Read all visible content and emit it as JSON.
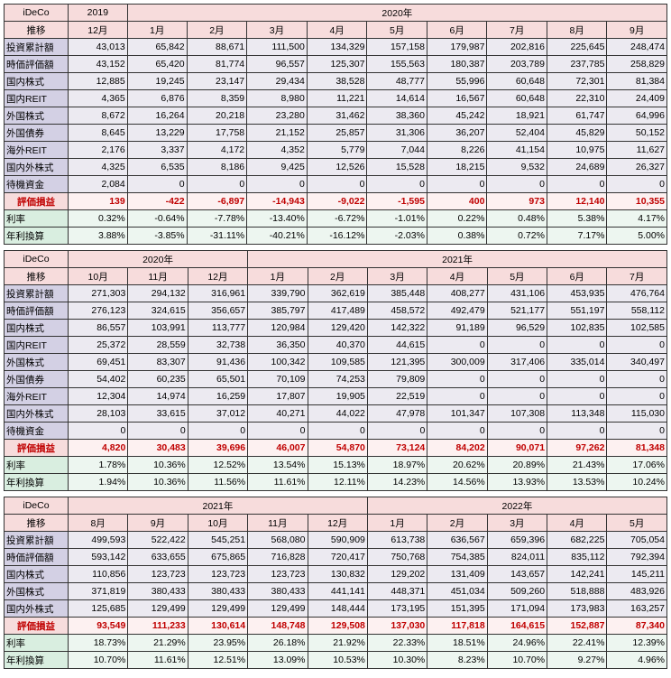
{
  "tables": [
    {
      "header_label1": "iDeCo",
      "header_label2": "推移",
      "year_groups": [
        {
          "label": "2019",
          "span": 1
        },
        {
          "label": "2020年",
          "span": 9
        }
      ],
      "months": [
        "12月",
        "1月",
        "2月",
        "3月",
        "4月",
        "5月",
        "6月",
        "7月",
        "8月",
        "9月"
      ],
      "rows": [
        {
          "class": "row-blue",
          "label": "投資累計額",
          "vals": [
            "43,013",
            "65,842",
            "88,671",
            "111,500",
            "134,329",
            "157,158",
            "179,987",
            "202,816",
            "225,645",
            "248,474"
          ]
        },
        {
          "class": "row-blue",
          "label": "時価評価額",
          "vals": [
            "43,152",
            "65,420",
            "81,774",
            "96,557",
            "125,307",
            "155,563",
            "180,387",
            "203,789",
            "237,785",
            "258,829"
          ]
        },
        {
          "class": "row-blue",
          "label": "国内株式",
          "vals": [
            "12,885",
            "19,245",
            "23,147",
            "29,434",
            "38,528",
            "48,777",
            "55,996",
            "60,648",
            "72,301",
            "81,384"
          ]
        },
        {
          "class": "row-blue",
          "label": "国内REIT",
          "vals": [
            "4,365",
            "6,876",
            "8,359",
            "8,980",
            "11,221",
            "14,614",
            "16,567",
            "60,648",
            "22,310",
            "24,409"
          ]
        },
        {
          "class": "row-blue",
          "label": "外国株式",
          "vals": [
            "8,672",
            "16,264",
            "20,218",
            "23,280",
            "31,462",
            "38,360",
            "45,242",
            "18,921",
            "61,747",
            "64,996"
          ]
        },
        {
          "class": "row-blue",
          "label": "外国債券",
          "vals": [
            "8,645",
            "13,229",
            "17,758",
            "21,152",
            "25,857",
            "31,306",
            "36,207",
            "52,404",
            "45,829",
            "50,152"
          ]
        },
        {
          "class": "row-blue",
          "label": "海外REIT",
          "vals": [
            "2,176",
            "3,337",
            "4,172",
            "4,352",
            "5,779",
            "7,044",
            "8,226",
            "41,154",
            "10,975",
            "11,627"
          ]
        },
        {
          "class": "row-blue",
          "label": "国内外株式",
          "vals": [
            "4,325",
            "6,535",
            "8,186",
            "9,425",
            "12,526",
            "15,528",
            "18,215",
            "9,532",
            "24,689",
            "26,327"
          ]
        },
        {
          "class": "row-blue",
          "label": "待機資金",
          "vals": [
            "2,084",
            "0",
            "0",
            "0",
            "0",
            "0",
            "0",
            "0",
            "0",
            "0"
          ]
        },
        {
          "class": "row-red",
          "label": "評価損益",
          "vals": [
            "139",
            "-422",
            "-6,897",
            "-14,943",
            "-9,022",
            "-1,595",
            "400",
            "973",
            "12,140",
            "10,355"
          ]
        },
        {
          "class": "row-green",
          "label": "利率",
          "vals": [
            "0.32%",
            "-0.64%",
            "-7.78%",
            "-13.40%",
            "-6.72%",
            "-1.01%",
            "0.22%",
            "0.48%",
            "5.38%",
            "4.17%"
          ]
        },
        {
          "class": "row-green",
          "label": "年利換算",
          "vals": [
            "3.88%",
            "-3.85%",
            "-31.11%",
            "-40.21%",
            "-16.12%",
            "-2.03%",
            "0.38%",
            "0.72%",
            "7.17%",
            "5.00%"
          ]
        }
      ]
    },
    {
      "header_label1": "iDeCo",
      "header_label2": "推移",
      "year_groups": [
        {
          "label": "2020年",
          "span": 3
        },
        {
          "label": "2021年",
          "span": 7
        }
      ],
      "months": [
        "10月",
        "11月",
        "12月",
        "1月",
        "2月",
        "3月",
        "4月",
        "5月",
        "6月",
        "7月"
      ],
      "rows": [
        {
          "class": "row-blue",
          "label": "投資累計額",
          "vals": [
            "271,303",
            "294,132",
            "316,961",
            "339,790",
            "362,619",
            "385,448",
            "408,277",
            "431,106",
            "453,935",
            "476,764"
          ]
        },
        {
          "class": "row-blue",
          "label": "時価評価額",
          "vals": [
            "276,123",
            "324,615",
            "356,657",
            "385,797",
            "417,489",
            "458,572",
            "492,479",
            "521,177",
            "551,197",
            "558,112"
          ]
        },
        {
          "class": "row-blue",
          "label": "国内株式",
          "vals": [
            "86,557",
            "103,991",
            "113,777",
            "120,984",
            "129,420",
            "142,322",
            "91,189",
            "96,529",
            "102,835",
            "102,585"
          ]
        },
        {
          "class": "row-blue",
          "label": "国内REIT",
          "vals": [
            "25,372",
            "28,559",
            "32,738",
            "36,350",
            "40,370",
            "44,615",
            "0",
            "0",
            "0",
            "0"
          ]
        },
        {
          "class": "row-blue",
          "label": "外国株式",
          "vals": [
            "69,451",
            "83,307",
            "91,436",
            "100,342",
            "109,585",
            "121,395",
            "300,009",
            "317,406",
            "335,014",
            "340,497"
          ]
        },
        {
          "class": "row-blue",
          "label": "外国債券",
          "vals": [
            "54,402",
            "60,235",
            "65,501",
            "70,109",
            "74,253",
            "79,809",
            "0",
            "0",
            "0",
            "0"
          ]
        },
        {
          "class": "row-blue",
          "label": "海外REIT",
          "vals": [
            "12,304",
            "14,974",
            "16,259",
            "17,807",
            "19,905",
            "22,519",
            "0",
            "0",
            "0",
            "0"
          ]
        },
        {
          "class": "row-blue",
          "label": "国内外株式",
          "vals": [
            "28,103",
            "33,615",
            "37,012",
            "40,271",
            "44,022",
            "47,978",
            "101,347",
            "107,308",
            "113,348",
            "115,030"
          ]
        },
        {
          "class": "row-blue",
          "label": "待機資金",
          "vals": [
            "0",
            "0",
            "0",
            "0",
            "0",
            "0",
            "0",
            "0",
            "0",
            "0"
          ]
        },
        {
          "class": "row-red",
          "label": "評価損益",
          "vals": [
            "4,820",
            "30,483",
            "39,696",
            "46,007",
            "54,870",
            "73,124",
            "84,202",
            "90,071",
            "97,262",
            "81,348"
          ]
        },
        {
          "class": "row-green",
          "label": "利率",
          "vals": [
            "1.78%",
            "10.36%",
            "12.52%",
            "13.54%",
            "15.13%",
            "18.97%",
            "20.62%",
            "20.89%",
            "21.43%",
            "17.06%"
          ]
        },
        {
          "class": "row-green",
          "label": "年利換算",
          "vals": [
            "1.94%",
            "10.36%",
            "11.56%",
            "11.61%",
            "12.11%",
            "14.23%",
            "14.56%",
            "13.93%",
            "13.53%",
            "10.24%"
          ]
        }
      ]
    },
    {
      "header_label1": "iDeCo",
      "header_label2": "推移",
      "year_groups": [
        {
          "label": "2021年",
          "span": 5
        },
        {
          "label": "2022年",
          "span": 5
        }
      ],
      "months": [
        "8月",
        "9月",
        "10月",
        "11月",
        "12月",
        "1月",
        "2月",
        "3月",
        "4月",
        "5月"
      ],
      "rows": [
        {
          "class": "row-blue",
          "label": "投資累計額",
          "vals": [
            "499,593",
            "522,422",
            "545,251",
            "568,080",
            "590,909",
            "613,738",
            "636,567",
            "659,396",
            "682,225",
            "705,054"
          ]
        },
        {
          "class": "row-blue",
          "label": "時価評価額",
          "vals": [
            "593,142",
            "633,655",
            "675,865",
            "716,828",
            "720,417",
            "750,768",
            "754,385",
            "824,011",
            "835,112",
            "792,394"
          ]
        },
        {
          "class": "row-blue",
          "label": "国内株式",
          "vals": [
            "110,856",
            "123,723",
            "123,723",
            "123,723",
            "130,832",
            "129,202",
            "131,409",
            "143,657",
            "142,241",
            "145,211"
          ]
        },
        {
          "class": "row-blue",
          "label": "外国株式",
          "vals": [
            "371,819",
            "380,433",
            "380,433",
            "380,433",
            "441,141",
            "448,371",
            "451,034",
            "509,260",
            "518,888",
            "483,926"
          ]
        },
        {
          "class": "row-blue",
          "label": "国内外株式",
          "vals": [
            "125,685",
            "129,499",
            "129,499",
            "129,499",
            "148,444",
            "173,195",
            "151,395",
            "171,094",
            "173,983",
            "163,257"
          ]
        },
        {
          "class": "row-red",
          "label": "評価損益",
          "vals": [
            "93,549",
            "111,233",
            "130,614",
            "148,748",
            "129,508",
            "137,030",
            "117,818",
            "164,615",
            "152,887",
            "87,340"
          ]
        },
        {
          "class": "row-green",
          "label": "利率",
          "vals": [
            "18.73%",
            "21.29%",
            "23.95%",
            "26.18%",
            "21.92%",
            "22.33%",
            "18.51%",
            "24.96%",
            "22.41%",
            "12.39%"
          ]
        },
        {
          "class": "row-green",
          "label": "年利換算",
          "vals": [
            "10.70%",
            "11.61%",
            "12.51%",
            "13.09%",
            "10.53%",
            "10.30%",
            "8.23%",
            "10.70%",
            "9.27%",
            "4.96%"
          ]
        }
      ]
    }
  ]
}
